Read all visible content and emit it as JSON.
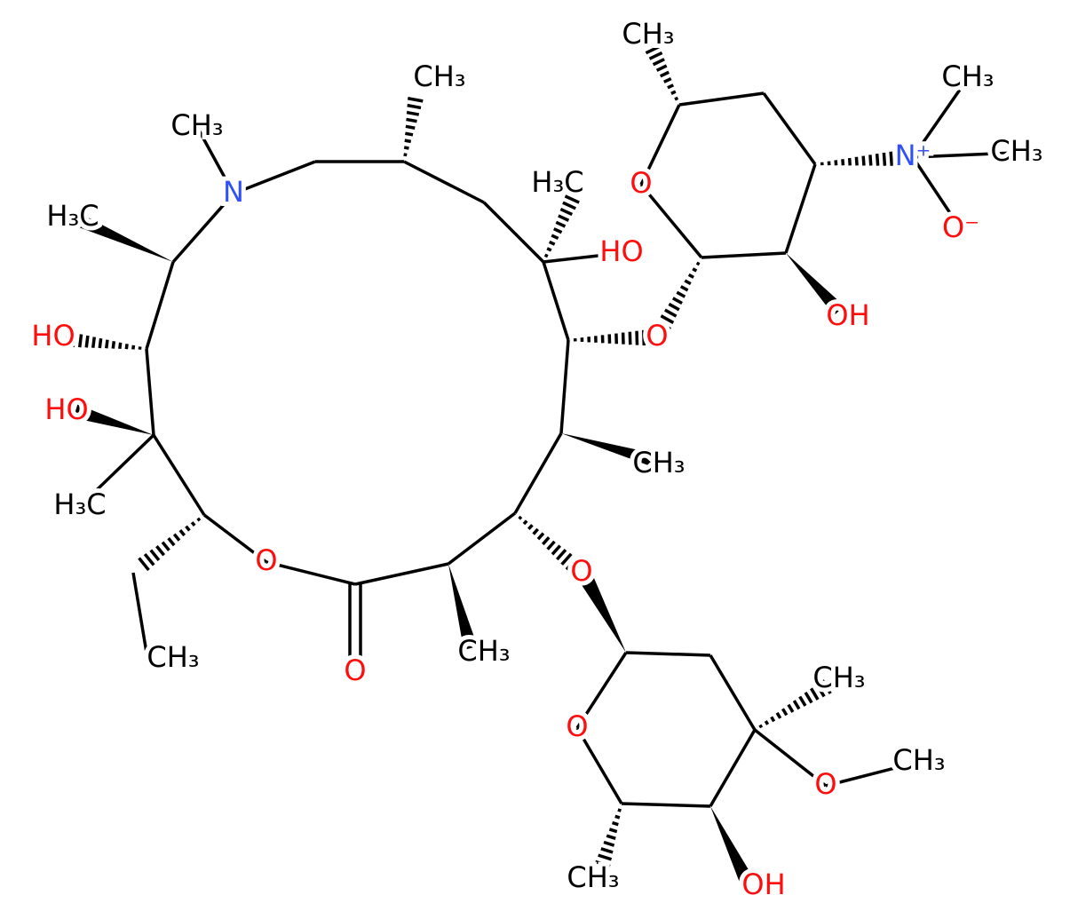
{
  "nodes": [
    {
      "label": "N"
    },
    {
      "label": "CH₃"
    },
    {
      "label": "CH₃"
    },
    {
      "label": "H₃C"
    },
    {
      "label": "HO"
    },
    {
      "label": "O"
    },
    {
      "label": "CH₃"
    },
    {
      "label": "O"
    },
    {
      "label": "CH₃"
    },
    {
      "label": "O"
    },
    {
      "label": "O"
    },
    {
      "label": "CH₃"
    },
    {
      "label": "HO"
    },
    {
      "label": "H₃C"
    },
    {
      "label": "HO"
    },
    {
      "label": "H₃C"
    },
    {
      "label": "O"
    },
    {
      "label": "CH₃"
    },
    {
      "label": "N⁺"
    },
    {
      "label": "CH₃"
    },
    {
      "label": "CH₃"
    },
    {
      "label": "O⁻"
    },
    {
      "label": "OH"
    },
    {
      "label": "O"
    },
    {
      "label": "CH₃"
    },
    {
      "label": "O"
    },
    {
      "label": "CH₃"
    },
    {
      "label": "OH"
    },
    {
      "label": "CH₃"
    }
  ]
}
